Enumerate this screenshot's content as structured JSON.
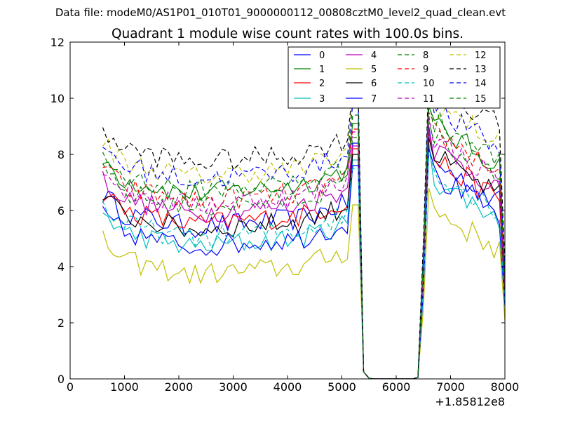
{
  "figure": {
    "suptitle": "Data file: modeM0/AS1P01_010T01_9000000112_00808cztM0_level2_quad_clean.evt"
  },
  "chart_data": {
    "type": "line",
    "title": "Quadrant 1 module wise count rates with 100.0s bins.",
    "xlabel": "",
    "ylabel": "",
    "x_offset_label": "+1.85812e8",
    "xlim": [
      0,
      8000
    ],
    "ylim": [
      0,
      12
    ],
    "xticks": [
      0,
      1000,
      2000,
      3000,
      4000,
      5000,
      6000,
      7000,
      8000
    ],
    "yticks": [
      0,
      2,
      4,
      6,
      8,
      10,
      12
    ],
    "legend_position": "top-right",
    "legend_columns": 4,
    "note": "x values in seconds relative to offset; count-rate series estimated from the plot, gap (~0 counts) between ~5450 and ~6400",
    "x_left": [
      600,
      700,
      800,
      900,
      1000,
      1100,
      1200,
      1300,
      1400,
      1500,
      1600,
      1700,
      1800,
      1900,
      2000,
      2100,
      2200,
      2300,
      2400,
      2500,
      2600,
      2700,
      2800,
      2900,
      3000,
      3100,
      3200,
      3300,
      3400,
      3500,
      3600,
      3700,
      3800,
      3900,
      4000,
      4100,
      4200,
      4300,
      4400,
      4500,
      4600,
      4700,
      4800,
      4900,
      5000,
      5100,
      5200,
      5300
    ],
    "x_right": [
      5300,
      5400,
      5500,
      5600,
      5700,
      5800,
      5900,
      6000,
      6100,
      6200,
      6300,
      6400,
      6500,
      6600,
      6700,
      6800,
      6900,
      7000,
      7100,
      7200,
      7300,
      7400,
      7500,
      7600,
      7700,
      7800,
      7900,
      8000
    ],
    "series": [
      {
        "name": "0",
        "color": "#0000ff",
        "dash": "solid",
        "level": 5.7,
        "peak": 8.4,
        "post": 6.3
      },
      {
        "name": "1",
        "color": "#008000",
        "dash": "solid",
        "level": 6.9,
        "peak": 9.1,
        "post": 7.6
      },
      {
        "name": "2",
        "color": "#ff0000",
        "dash": "solid",
        "level": 5.8,
        "peak": 8.2,
        "post": 6.4
      },
      {
        "name": "3",
        "color": "#00bfbf",
        "dash": "solid",
        "level": 5.0,
        "peak": 7.8,
        "post": 5.7
      },
      {
        "name": "4",
        "color": "#bf00bf",
        "dash": "solid",
        "level": 6.2,
        "peak": 8.3,
        "post": 6.8
      },
      {
        "name": "5",
        "color": "#bfbf00",
        "dash": "solid",
        "level": 4.0,
        "peak": 6.2,
        "post": 4.6
      },
      {
        "name": "6",
        "color": "#000000",
        "dash": "solid",
        "level": 5.6,
        "peak": 8.0,
        "post": 6.5
      },
      {
        "name": "7",
        "color": "#0000ff",
        "dash": "solid",
        "level": 5.0,
        "peak": 7.6,
        "post": 5.8
      },
      {
        "name": "8",
        "color": "#008000",
        "dash": "dashed",
        "level": 6.4,
        "peak": 8.6,
        "post": 7.2
      },
      {
        "name": "9",
        "color": "#ff0000",
        "dash": "dashed",
        "level": 6.6,
        "peak": 8.9,
        "post": 7.4
      },
      {
        "name": "10",
        "color": "#00bfbf",
        "dash": "dashed",
        "level": 5.3,
        "peak": 7.5,
        "post": 6.0
      },
      {
        "name": "11",
        "color": "#bf00bf",
        "dash": "dashed",
        "level": 6.5,
        "peak": 8.8,
        "post": 7.1
      },
      {
        "name": "12",
        "color": "#bfbf00",
        "dash": "dashed",
        "level": 7.5,
        "peak": 10.0,
        "post": 8.4
      },
      {
        "name": "13",
        "color": "#000000",
        "dash": "dashed",
        "level": 8.0,
        "peak": 10.3,
        "post": 9.0
      },
      {
        "name": "14",
        "color": "#0000ff",
        "dash": "dashed",
        "level": 7.4,
        "peak": 9.8,
        "post": 8.2
      },
      {
        "name": "15",
        "color": "#008000",
        "dash": "dashed",
        "level": 7.0,
        "peak": 9.4,
        "post": 7.8
      }
    ]
  }
}
